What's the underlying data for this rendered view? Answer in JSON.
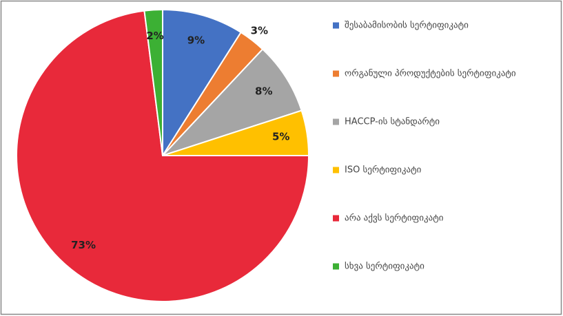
{
  "chart_data": {
    "type": "pie",
    "categories": [
      "შესაბამისობის სერტიფიკატი",
      "ორგანული პროდუქტების სერტიფიკატი",
      "HACCP-ის სტანდარტი",
      "ISO სერტიფიკატი",
      "არა აქვს სერტიფიკატი",
      "სხვა სერტიფიკატი"
    ],
    "values": [
      9,
      3,
      8,
      5,
      73,
      2
    ],
    "value_labels": [
      "9%",
      "3%",
      "8%",
      "5%",
      "73%",
      "2%"
    ],
    "colors": [
      "#4472c4",
      "#ed7d31",
      "#a5a5a5",
      "#ffc000",
      "#e8293a",
      "#3cb034"
    ],
    "legend": "right"
  }
}
